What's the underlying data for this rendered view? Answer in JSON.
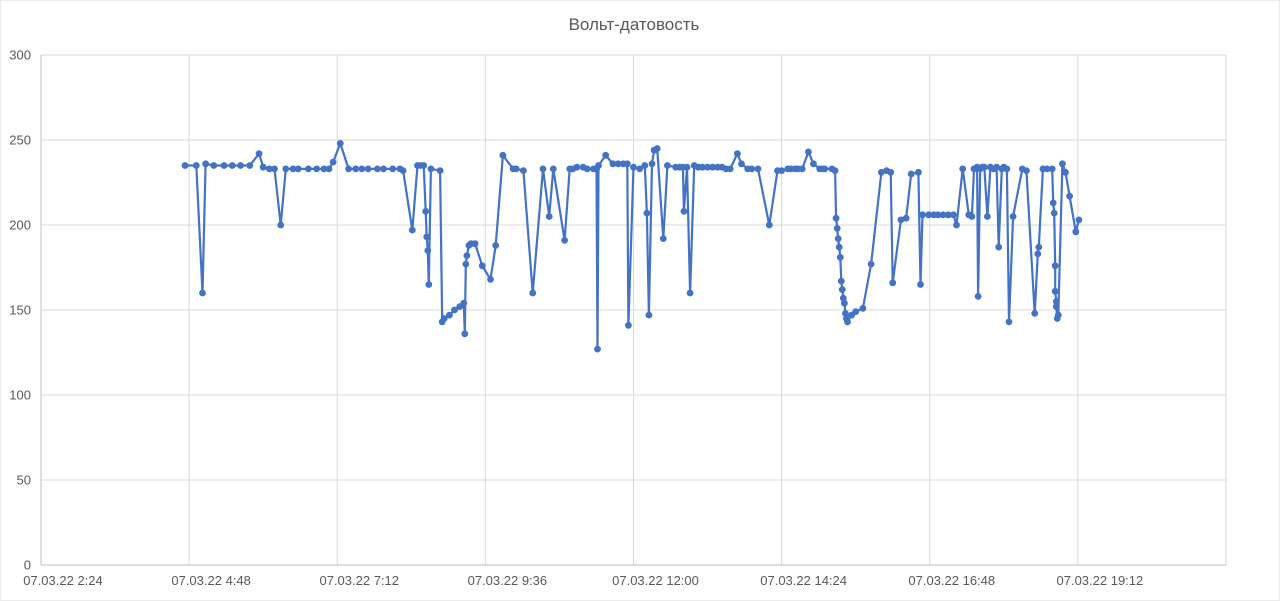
{
  "chart_data": {
    "type": "line",
    "title": "Вольт-датовость",
    "series_name": "Вольт-датовость",
    "legend": false,
    "grid": true,
    "line_color": "#4472C4",
    "marker": "circle",
    "marker_color": "#4472C4",
    "grid_color": "#D9D9D9",
    "axis_line_color": "#BFBFBF",
    "label_color": "#595959",
    "background": "#FFFFFF",
    "x_axis": {
      "type": "datetime",
      "date": "07.03.22",
      "min_minutes": 144,
      "max_minutes": 1296,
      "tick_minutes": [
        144,
        288,
        432,
        576,
        720,
        864,
        1008,
        1152
      ],
      "tick_labels": [
        "07.03.22 2:24",
        "07.03.22 4:48",
        "07.03.22 7:12",
        "07.03.22 9:36",
        "07.03.22 12:00",
        "07.03.22 14:24",
        "07.03.22 16:48",
        "07.03.22 19:12"
      ]
    },
    "y_axis": {
      "min": 0,
      "max": 300,
      "tick_step": 50,
      "ticks": [
        0,
        50,
        100,
        150,
        200,
        250,
        300
      ],
      "tick_labels": [
        "0",
        "50",
        "100",
        "150",
        "200",
        "250",
        "300"
      ]
    },
    "points_format": [
      "minutes_since_midnight",
      "volts"
    ],
    "points": [
      [
        284,
        235
      ],
      [
        295,
        235
      ],
      [
        301,
        160
      ],
      [
        304,
        236
      ],
      [
        312,
        235
      ],
      [
        322,
        235
      ],
      [
        330,
        235
      ],
      [
        338,
        235
      ],
      [
        347,
        235
      ],
      [
        356,
        242
      ],
      [
        360,
        234
      ],
      [
        366,
        233
      ],
      [
        371,
        233
      ],
      [
        377,
        200
      ],
      [
        382,
        233
      ],
      [
        389,
        233
      ],
      [
        394,
        233
      ],
      [
        404,
        233
      ],
      [
        412,
        233
      ],
      [
        419,
        233
      ],
      [
        424,
        233
      ],
      [
        428,
        237
      ],
      [
        435,
        248
      ],
      [
        443,
        233
      ],
      [
        450,
        233
      ],
      [
        456,
        233
      ],
      [
        462,
        233
      ],
      [
        471,
        233
      ],
      [
        477,
        233
      ],
      [
        486,
        233
      ],
      [
        493,
        233
      ],
      [
        496,
        232
      ],
      [
        505,
        197
      ],
      [
        510,
        235
      ],
      [
        513,
        235
      ],
      [
        516,
        235
      ],
      [
        518,
        208
      ],
      [
        519,
        193
      ],
      [
        520,
        185
      ],
      [
        521,
        165
      ],
      [
        523,
        233
      ],
      [
        532,
        232
      ],
      [
        534,
        143
      ],
      [
        536,
        145
      ],
      [
        541,
        147
      ],
      [
        546,
        150
      ],
      [
        551,
        152
      ],
      [
        555,
        154
      ],
      [
        556,
        136
      ],
      [
        557,
        177
      ],
      [
        558,
        182
      ],
      [
        560,
        188
      ],
      [
        562,
        189
      ],
      [
        566,
        189
      ],
      [
        573,
        176
      ],
      [
        581,
        168
      ],
      [
        586,
        188
      ],
      [
        593,
        241
      ],
      [
        603,
        233
      ],
      [
        606,
        233
      ],
      [
        613,
        232
      ],
      [
        622,
        160
      ],
      [
        632,
        233
      ],
      [
        638,
        205
      ],
      [
        642,
        233
      ],
      [
        653,
        191
      ],
      [
        658,
        233
      ],
      [
        661,
        233
      ],
      [
        665,
        234
      ],
      [
        671,
        234
      ],
      [
        675,
        233
      ],
      [
        681,
        233
      ],
      [
        684,
        233
      ],
      [
        685,
        127
      ],
      [
        686,
        235
      ],
      [
        693,
        241
      ],
      [
        700,
        236
      ],
      [
        705,
        236
      ],
      [
        710,
        236
      ],
      [
        714,
        236
      ],
      [
        715,
        141
      ],
      [
        720,
        234
      ],
      [
        726,
        233
      ],
      [
        731,
        235
      ],
      [
        733,
        207
      ],
      [
        735,
        147
      ],
      [
        738,
        236
      ],
      [
        740,
        244
      ],
      [
        743,
        245
      ],
      [
        749,
        192
      ],
      [
        753,
        235
      ],
      [
        761,
        234
      ],
      [
        765,
        234
      ],
      [
        768,
        234
      ],
      [
        769,
        208
      ],
      [
        772,
        234
      ],
      [
        775,
        160
      ],
      [
        779,
        235
      ],
      [
        783,
        234
      ],
      [
        787,
        234
      ],
      [
        792,
        234
      ],
      [
        797,
        234
      ],
      [
        802,
        234
      ],
      [
        806,
        234
      ],
      [
        810,
        233
      ],
      [
        814,
        233
      ],
      [
        821,
        242
      ],
      [
        825,
        236
      ],
      [
        831,
        233
      ],
      [
        835,
        233
      ],
      [
        841,
        233
      ],
      [
        852,
        200
      ],
      [
        860,
        232
      ],
      [
        864,
        232
      ],
      [
        870,
        233
      ],
      [
        873,
        233
      ],
      [
        877,
        233
      ],
      [
        880,
        233
      ],
      [
        884,
        233
      ],
      [
        890,
        243
      ],
      [
        895,
        236
      ],
      [
        901,
        233
      ],
      [
        904,
        233
      ],
      [
        906,
        233
      ],
      [
        913,
        233
      ],
      [
        916,
        232
      ],
      [
        917,
        204
      ],
      [
        918,
        198
      ],
      [
        919,
        192
      ],
      [
        920,
        187
      ],
      [
        921,
        181
      ],
      [
        922,
        167
      ],
      [
        923,
        162
      ],
      [
        924,
        157
      ],
      [
        925,
        154
      ],
      [
        926,
        148
      ],
      [
        927,
        145
      ],
      [
        928,
        143
      ],
      [
        932,
        147
      ],
      [
        936,
        149
      ],
      [
        943,
        151
      ],
      [
        951,
        177
      ],
      [
        961,
        231
      ],
      [
        966,
        232
      ],
      [
        970,
        231
      ],
      [
        972,
        166
      ],
      [
        980,
        203
      ],
      [
        985,
        204
      ],
      [
        990,
        230
      ],
      [
        997,
        231
      ],
      [
        999,
        165
      ],
      [
        1001,
        206
      ],
      [
        1007,
        206
      ],
      [
        1012,
        206
      ],
      [
        1016,
        206
      ],
      [
        1021,
        206
      ],
      [
        1026,
        206
      ],
      [
        1031,
        206
      ],
      [
        1034,
        200
      ],
      [
        1040,
        233
      ],
      [
        1046,
        206
      ],
      [
        1049,
        205
      ],
      [
        1051,
        233
      ],
      [
        1054,
        234
      ],
      [
        1055,
        158
      ],
      [
        1057,
        233
      ],
      [
        1059,
        234
      ],
      [
        1061,
        234
      ],
      [
        1064,
        205
      ],
      [
        1067,
        234
      ],
      [
        1070,
        233
      ],
      [
        1073,
        234
      ],
      [
        1075,
        187
      ],
      [
        1078,
        233
      ],
      [
        1080,
        234
      ],
      [
        1083,
        233
      ],
      [
        1085,
        143
      ],
      [
        1089,
        205
      ],
      [
        1098,
        233
      ],
      [
        1102,
        232
      ],
      [
        1110,
        148
      ],
      [
        1113,
        183
      ],
      [
        1114,
        187
      ],
      [
        1118,
        233
      ],
      [
        1122,
        233
      ],
      [
        1127,
        233
      ],
      [
        1128,
        213
      ],
      [
        1129,
        207
      ],
      [
        1130,
        176
      ],
      [
        1130,
        161
      ],
      [
        1131,
        155
      ],
      [
        1131,
        152
      ],
      [
        1132,
        145
      ],
      [
        1133,
        147
      ],
      [
        1137,
        236
      ],
      [
        1140,
        231
      ],
      [
        1144,
        217
      ],
      [
        1150,
        196
      ],
      [
        1153,
        203
      ]
    ]
  }
}
